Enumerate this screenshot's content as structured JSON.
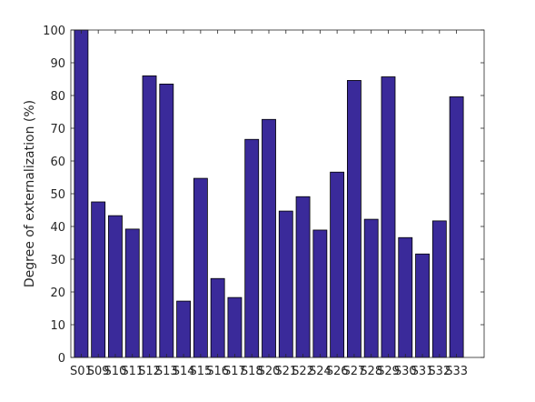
{
  "chart_data": {
    "type": "bar",
    "title": "",
    "xlabel": "",
    "ylabel": "Degree of externalization (%)",
    "ylim": [
      0,
      100
    ],
    "yticks": [
      0,
      10,
      20,
      30,
      40,
      50,
      60,
      70,
      80,
      90,
      100
    ],
    "grid": false,
    "legend": "none",
    "bar_color": "#3a2a9a",
    "categories": [
      "S01",
      "S09",
      "S10",
      "S11",
      "S12",
      "S13",
      "S14",
      "S15",
      "S16",
      "S17",
      "S18",
      "S20",
      "S21",
      "S22",
      "S24",
      "S26",
      "S27",
      "S28",
      "S29",
      "S30",
      "S31",
      "S32",
      "S33"
    ],
    "values": [
      100,
      47.5,
      43.3,
      39.2,
      86.0,
      83.5,
      17.2,
      54.7,
      24.1,
      18.3,
      66.6,
      72.7,
      44.7,
      49.1,
      38.9,
      56.6,
      84.6,
      42.2,
      85.7,
      36.6,
      31.6,
      41.7,
      79.6
    ]
  }
}
